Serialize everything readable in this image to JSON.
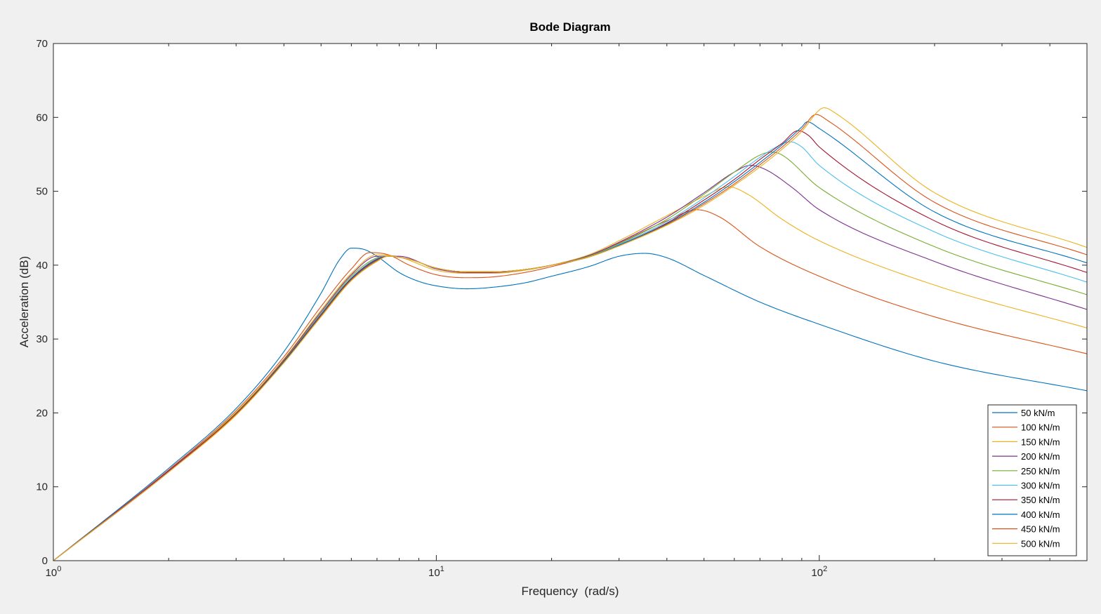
{
  "chart_data": {
    "type": "line",
    "title": "Bode Diagram",
    "xlabel": "Frequency  (rad/s)",
    "ylabel": "Acceleration (dB)",
    "xscale": "log",
    "xlim": [
      1,
      500
    ],
    "ylim": [
      0,
      70
    ],
    "xticks": [
      {
        "value": 1,
        "base": "10",
        "exp": "0"
      },
      {
        "value": 10,
        "base": "10",
        "exp": "1"
      },
      {
        "value": 100,
        "base": "10",
        "exp": "2"
      }
    ],
    "yticks": [
      {
        "value": 0,
        "label": "0"
      },
      {
        "value": 10,
        "label": "10"
      },
      {
        "value": 20,
        "label": "20"
      },
      {
        "value": 30,
        "label": "30"
      },
      {
        "value": 40,
        "label": "40"
      },
      {
        "value": 50,
        "label": "50"
      },
      {
        "value": 60,
        "label": "60"
      },
      {
        "value": 70,
        "label": "70"
      }
    ],
    "grid": false,
    "legend_position": "bottom-right",
    "series": [
      {
        "name": "50 kN/m",
        "color": "#0072BD",
        "points": [
          [
            1,
            0
          ],
          [
            2,
            12.5
          ],
          [
            3,
            20.6
          ],
          [
            4,
            28.3
          ],
          [
            5,
            36.2
          ],
          [
            5.6,
            40.8
          ],
          [
            6,
            42.3
          ],
          [
            6.5,
            42.1
          ],
          [
            7,
            41.2
          ],
          [
            8,
            39.0
          ],
          [
            9,
            37.8
          ],
          [
            10,
            37.2
          ],
          [
            12,
            36.8
          ],
          [
            14,
            37.0
          ],
          [
            17,
            37.6
          ],
          [
            20,
            38.5
          ],
          [
            25,
            39.8
          ],
          [
            30,
            41.2
          ],
          [
            35,
            41.6
          ],
          [
            40,
            41.0
          ],
          [
            50,
            38.6
          ],
          [
            70,
            35.0
          ],
          [
            100,
            32.0
          ],
          [
            200,
            27.0
          ],
          [
            500,
            23.0
          ]
        ]
      },
      {
        "name": "100 kN/m",
        "color": "#D95319",
        "points": [
          [
            1,
            0
          ],
          [
            2,
            12.3
          ],
          [
            3,
            20.3
          ],
          [
            4,
            27.6
          ],
          [
            5,
            34.4
          ],
          [
            6,
            39.5
          ],
          [
            6.7,
            41.7
          ],
          [
            7.5,
            41.4
          ],
          [
            8.5,
            40.0
          ],
          [
            10,
            38.7
          ],
          [
            12,
            38.3
          ],
          [
            14,
            38.4
          ],
          [
            17,
            39.0
          ],
          [
            20,
            39.8
          ],
          [
            25,
            41.2
          ],
          [
            30,
            43.0
          ],
          [
            40,
            46.0
          ],
          [
            48,
            47.5
          ],
          [
            55,
            46.5
          ],
          [
            70,
            42.5
          ],
          [
            100,
            38.5
          ],
          [
            200,
            33.0
          ],
          [
            500,
            28.0
          ]
        ]
      },
      {
        "name": "150 kN/m",
        "color": "#EDB120",
        "points": [
          [
            1,
            0
          ],
          [
            2,
            12.2
          ],
          [
            3,
            20.1
          ],
          [
            4,
            27.3
          ],
          [
            5,
            33.9
          ],
          [
            6,
            38.9
          ],
          [
            7,
            41.4
          ],
          [
            8,
            41.1
          ],
          [
            10,
            39.3
          ],
          [
            12,
            38.9
          ],
          [
            14,
            38.9
          ],
          [
            17,
            39.3
          ],
          [
            20,
            40.0
          ],
          [
            25,
            41.4
          ],
          [
            30,
            43.3
          ],
          [
            40,
            46.7
          ],
          [
            50,
            49.3
          ],
          [
            58,
            50.6
          ],
          [
            65,
            49.6
          ],
          [
            80,
            46.2
          ],
          [
            100,
            43.3
          ],
          [
            200,
            37.3
          ],
          [
            500,
            31.5
          ]
        ]
      },
      {
        "name": "200 kN/m",
        "color": "#7E2F8E",
        "points": [
          [
            1,
            0
          ],
          [
            2,
            12.2
          ],
          [
            3,
            20.0
          ],
          [
            4,
            27.2
          ],
          [
            5,
            33.7
          ],
          [
            6,
            38.7
          ],
          [
            7,
            41.2
          ],
          [
            8,
            41.2
          ],
          [
            10,
            39.5
          ],
          [
            12,
            39.0
          ],
          [
            14,
            39.0
          ],
          [
            17,
            39.4
          ],
          [
            20,
            40.0
          ],
          [
            25,
            41.3
          ],
          [
            30,
            43.1
          ],
          [
            40,
            46.5
          ],
          [
            50,
            49.8
          ],
          [
            60,
            52.6
          ],
          [
            66,
            53.5
          ],
          [
            72,
            53.0
          ],
          [
            85,
            50.5
          ],
          [
            100,
            47.5
          ],
          [
            200,
            40.5
          ],
          [
            500,
            34.0
          ]
        ]
      },
      {
        "name": "250 kN/m",
        "color": "#77AC30",
        "points": [
          [
            1,
            0
          ],
          [
            2,
            12.1
          ],
          [
            3,
            20.0
          ],
          [
            4,
            27.1
          ],
          [
            5,
            33.5
          ],
          [
            6,
            38.5
          ],
          [
            7,
            41.0
          ],
          [
            7.5,
            41.2
          ],
          [
            8.5,
            40.8
          ],
          [
            10,
            39.6
          ],
          [
            12,
            39.1
          ],
          [
            14,
            39.1
          ],
          [
            17,
            39.4
          ],
          [
            20,
            40.0
          ],
          [
            25,
            41.2
          ],
          [
            30,
            42.9
          ],
          [
            40,
            46.2
          ],
          [
            50,
            49.6
          ],
          [
            60,
            52.6
          ],
          [
            70,
            54.9
          ],
          [
            75,
            55.3
          ],
          [
            80,
            54.9
          ],
          [
            100,
            50.5
          ],
          [
            200,
            42.5
          ],
          [
            500,
            36.0
          ]
        ]
      },
      {
        "name": "300 kN/m",
        "color": "#4DBEEE",
        "points": [
          [
            1,
            0
          ],
          [
            2,
            12.1
          ],
          [
            3,
            19.9
          ],
          [
            4,
            27.0
          ],
          [
            5,
            33.4
          ],
          [
            6,
            38.3
          ],
          [
            7,
            40.9
          ],
          [
            7.5,
            41.2
          ],
          [
            8.5,
            40.8
          ],
          [
            10,
            39.6
          ],
          [
            12,
            39.1
          ],
          [
            14,
            39.1
          ],
          [
            17,
            39.4
          ],
          [
            20,
            40.0
          ],
          [
            25,
            41.1
          ],
          [
            30,
            42.8
          ],
          [
            40,
            45.9
          ],
          [
            50,
            49.1
          ],
          [
            60,
            52.0
          ],
          [
            70,
            54.6
          ],
          [
            80,
            56.4
          ],
          [
            84,
            56.7
          ],
          [
            90,
            56.0
          ],
          [
            100,
            53.5
          ],
          [
            200,
            44.5
          ],
          [
            500,
            37.7
          ]
        ]
      },
      {
        "name": "350 kN/m",
        "color": "#A2142F",
        "points": [
          [
            1,
            0
          ],
          [
            2,
            12.1
          ],
          [
            3,
            19.9
          ],
          [
            4,
            27.0
          ],
          [
            5,
            33.3
          ],
          [
            6,
            38.2
          ],
          [
            7,
            40.8
          ],
          [
            7.5,
            41.2
          ],
          [
            8.5,
            40.8
          ],
          [
            10,
            39.6
          ],
          [
            12,
            39.1
          ],
          [
            14,
            39.1
          ],
          [
            17,
            39.4
          ],
          [
            20,
            40.0
          ],
          [
            25,
            41.1
          ],
          [
            30,
            42.7
          ],
          [
            40,
            45.7
          ],
          [
            50,
            48.8
          ],
          [
            60,
            51.6
          ],
          [
            70,
            54.3
          ],
          [
            80,
            56.5
          ],
          [
            88,
            58.2
          ],
          [
            94,
            57.5
          ],
          [
            100,
            56.0
          ],
          [
            200,
            46.0
          ],
          [
            500,
            39.0
          ]
        ]
      },
      {
        "name": "400 kN/m",
        "color": "#0072BD",
        "points": [
          [
            1,
            0
          ],
          [
            2,
            12.0
          ],
          [
            3,
            19.8
          ],
          [
            4,
            26.9
          ],
          [
            5,
            33.2
          ],
          [
            6,
            38.1
          ],
          [
            7,
            40.7
          ],
          [
            7.5,
            41.2
          ],
          [
            8.5,
            40.8
          ],
          [
            10,
            39.6
          ],
          [
            12,
            39.1
          ],
          [
            14,
            39.1
          ],
          [
            17,
            39.4
          ],
          [
            20,
            40.0
          ],
          [
            25,
            41.1
          ],
          [
            30,
            42.7
          ],
          [
            40,
            45.6
          ],
          [
            50,
            48.5
          ],
          [
            60,
            51.3
          ],
          [
            70,
            53.9
          ],
          [
            80,
            56.3
          ],
          [
            90,
            58.7
          ],
          [
            93,
            59.4
          ],
          [
            100,
            58.5
          ],
          [
            200,
            47.2
          ],
          [
            500,
            40.3
          ]
        ]
      },
      {
        "name": "450 kN/m",
        "color": "#D95319",
        "points": [
          [
            1,
            0
          ],
          [
            2,
            12.0
          ],
          [
            3,
            19.8
          ],
          [
            4,
            26.8
          ],
          [
            5,
            33.1
          ],
          [
            6,
            38.0
          ],
          [
            7,
            40.6
          ],
          [
            7.5,
            41.2
          ],
          [
            8.5,
            40.8
          ],
          [
            10,
            39.6
          ],
          [
            12,
            39.1
          ],
          [
            14,
            39.1
          ],
          [
            17,
            39.4
          ],
          [
            20,
            40.0
          ],
          [
            25,
            41.1
          ],
          [
            30,
            42.6
          ],
          [
            40,
            45.5
          ],
          [
            50,
            48.3
          ],
          [
            60,
            51.0
          ],
          [
            70,
            53.6
          ],
          [
            80,
            56.0
          ],
          [
            90,
            58.4
          ],
          [
            98,
            60.4
          ],
          [
            105,
            59.6
          ],
          [
            200,
            48.5
          ],
          [
            500,
            41.4
          ]
        ]
      },
      {
        "name": "500 kN/m",
        "color": "#EDB120",
        "points": [
          [
            1,
            0
          ],
          [
            2,
            12.0
          ],
          [
            3,
            19.7
          ],
          [
            4,
            26.8
          ],
          [
            5,
            33.0
          ],
          [
            6,
            37.9
          ],
          [
            7,
            40.5
          ],
          [
            7.5,
            41.2
          ],
          [
            8.5,
            40.8
          ],
          [
            10,
            39.6
          ],
          [
            12,
            39.1
          ],
          [
            14,
            39.1
          ],
          [
            17,
            39.4
          ],
          [
            20,
            40.0
          ],
          [
            25,
            41.1
          ],
          [
            30,
            42.6
          ],
          [
            40,
            45.4
          ],
          [
            50,
            48.1
          ],
          [
            60,
            50.8
          ],
          [
            70,
            53.3
          ],
          [
            80,
            55.7
          ],
          [
            90,
            58.1
          ],
          [
            100,
            61.0
          ],
          [
            103,
            61.3
          ],
          [
            110,
            60.6
          ],
          [
            200,
            49.8
          ],
          [
            500,
            42.4
          ]
        ]
      }
    ]
  }
}
